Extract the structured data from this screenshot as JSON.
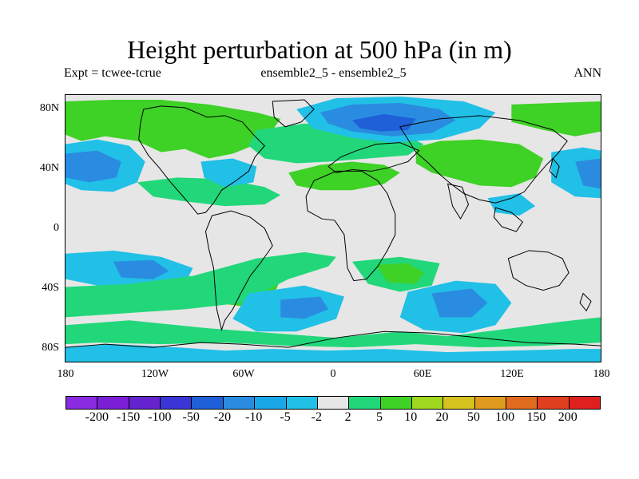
{
  "title": "Height perturbation at 500 hPa (in m)",
  "subtitle_left": "Expt = tcwee-tcrue",
  "subtitle_center": "ensemble2_5 - ensemble2_5",
  "subtitle_right": "ANN",
  "lat_ticks": [
    "80N",
    "40N",
    "0",
    "40S",
    "80S"
  ],
  "lon_ticks": [
    "180",
    "120W",
    "60W",
    "0",
    "60E",
    "120E",
    "180"
  ],
  "legend_labels": [
    "-200",
    "-150",
    "-100",
    "-50",
    "-20",
    "-10",
    "-5",
    "-2",
    "2",
    "5",
    "10",
    "20",
    "50",
    "100",
    "150",
    "200"
  ],
  "legend_colors": [
    "#8a2be2",
    "#7a1fd6",
    "#6524cf",
    "#3b35d6",
    "#1f5fd8",
    "#2a8ce0",
    "#1aa7e8",
    "#21c0e6",
    "#e6e6e6",
    "#22d77a",
    "#3ed126",
    "#9fd61e",
    "#d6c21e",
    "#e09b1f",
    "#e06b1f",
    "#e0401f",
    "#e0201f"
  ],
  "background_color": "#e6e6e6"
}
